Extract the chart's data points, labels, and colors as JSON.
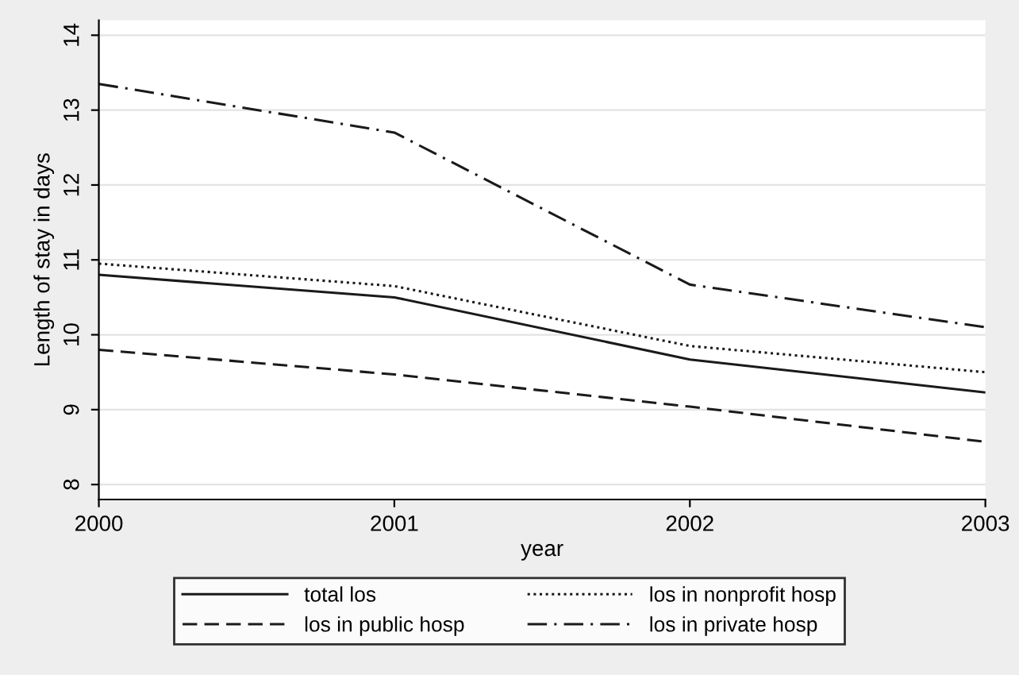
{
  "chart_data": {
    "type": "line",
    "xlabel": "year",
    "ylabel": "Length of stay in days",
    "x": [
      2000,
      2001,
      2002,
      2003
    ],
    "series": [
      {
        "name": "total los",
        "color": "#1a1a1a",
        "line_style": "solid",
        "values": [
          10.8,
          10.5,
          9.67,
          9.23
        ]
      },
      {
        "name": "los in public hosp",
        "color": "#1a1a1a",
        "line_style": "dashed",
        "values": [
          9.8,
          9.47,
          9.04,
          8.57
        ]
      },
      {
        "name": "los in nonprofit hosp",
        "color": "#1a1a1a",
        "line_style": "dotted",
        "values": [
          10.95,
          10.65,
          9.85,
          9.5
        ]
      },
      {
        "name": "los in private hosp",
        "color": "#1a1a1a",
        "line_style": "dashdot",
        "values": [
          13.35,
          12.7,
          10.67,
          10.1
        ]
      }
    ],
    "xlim": [
      2000,
      2003
    ],
    "xticks": [
      2000,
      2001,
      2002,
      2003
    ],
    "ylim": [
      7.8,
      14.2
    ],
    "yticks": [
      8,
      9,
      10,
      11,
      12,
      13,
      14
    ],
    "grid": "y",
    "legend": "bottom"
  }
}
